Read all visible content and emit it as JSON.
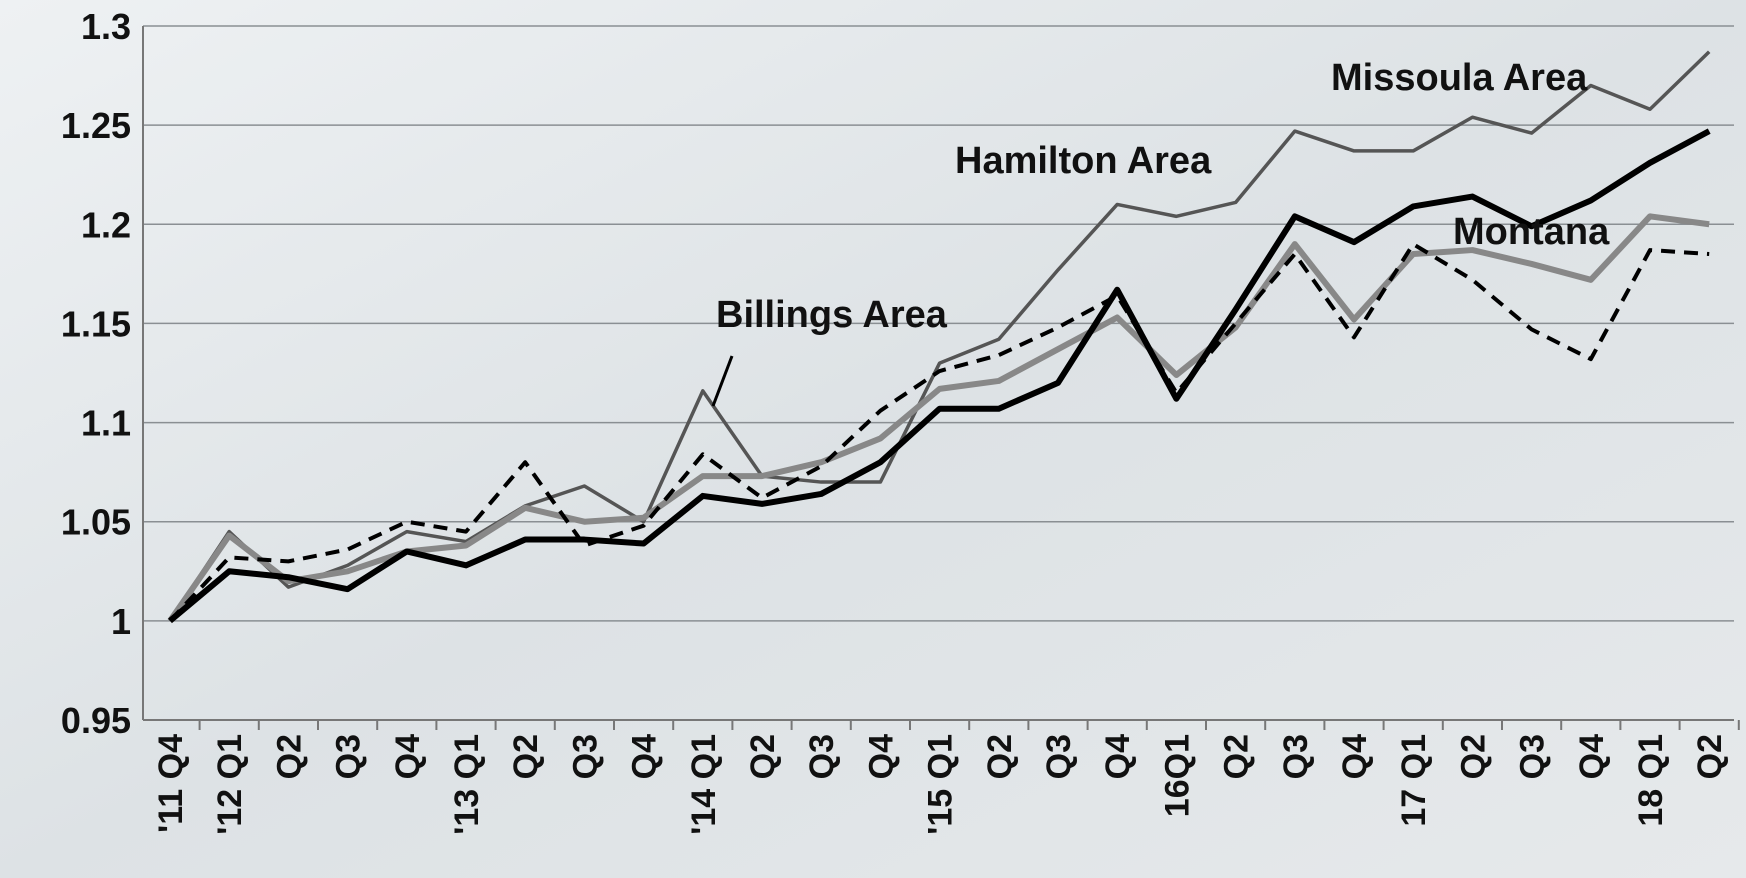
{
  "chart_data": {
    "type": "line",
    "categories": [
      "'11 Q4",
      "'12 Q1",
      "Q2",
      "Q3",
      "Q4",
      "'13 Q1",
      "Q2",
      "Q3",
      "Q4",
      "'14 Q1",
      "Q2",
      "Q3",
      "Q4",
      "'15 Q1",
      "Q2",
      "Q3",
      "Q4",
      "16Q1",
      "Q2",
      "Q3",
      "Q4",
      "17 Q1",
      "Q2",
      "Q3",
      "Q4",
      "18 Q1",
      "Q2"
    ],
    "series": [
      {
        "name": "Billings Area",
        "color": "#555555",
        "width": 3.5,
        "dashed": false,
        "values": [
          1.0,
          1.045,
          1.017,
          1.028,
          1.045,
          1.04,
          1.058,
          1.068,
          1.05,
          1.116,
          1.073,
          1.07,
          1.07,
          1.13,
          1.142,
          1.177,
          1.21,
          1.204,
          1.211,
          1.247,
          1.237,
          1.237,
          1.254,
          1.246,
          1.27,
          1.258,
          1.287
        ]
      },
      {
        "name": "Montana",
        "color": "#888888",
        "width": 6,
        "dashed": false,
        "values": [
          1.0,
          1.043,
          1.02,
          1.025,
          1.035,
          1.038,
          1.057,
          1.05,
          1.052,
          1.073,
          1.073,
          1.08,
          1.092,
          1.117,
          1.121,
          1.137,
          1.153,
          1.124,
          1.148,
          1.19,
          1.152,
          1.185,
          1.187,
          1.18,
          1.172,
          1.204,
          1.2
        ]
      },
      {
        "name": "Missoula Area",
        "color": "#000000",
        "width": 6,
        "dashed": false,
        "values": [
          1.0,
          1.025,
          1.022,
          1.016,
          1.035,
          1.028,
          1.041,
          1.041,
          1.039,
          1.063,
          1.059,
          1.064,
          1.08,
          1.107,
          1.107,
          1.12,
          1.167,
          1.112,
          1.157,
          1.204,
          1.191,
          1.209,
          1.214,
          1.199,
          1.212,
          1.231,
          1.247
        ]
      },
      {
        "name": "Hamilton Area",
        "color": "#000000",
        "width": 4,
        "dashed": true,
        "values": [
          1.0,
          1.032,
          1.03,
          1.036,
          1.05,
          1.045,
          1.08,
          1.038,
          1.048,
          1.084,
          1.062,
          1.078,
          1.106,
          1.126,
          1.134,
          1.148,
          1.164,
          1.115,
          1.15,
          1.185,
          1.143,
          1.19,
          1.172,
          1.147,
          1.132,
          1.187,
          1.185
        ]
      }
    ],
    "ylim": [
      0.95,
      1.3
    ],
    "yticks": [
      0.95,
      1,
      1.05,
      1.1,
      1.15,
      1.2,
      1.25,
      1.3
    ],
    "grid": true
  }
}
